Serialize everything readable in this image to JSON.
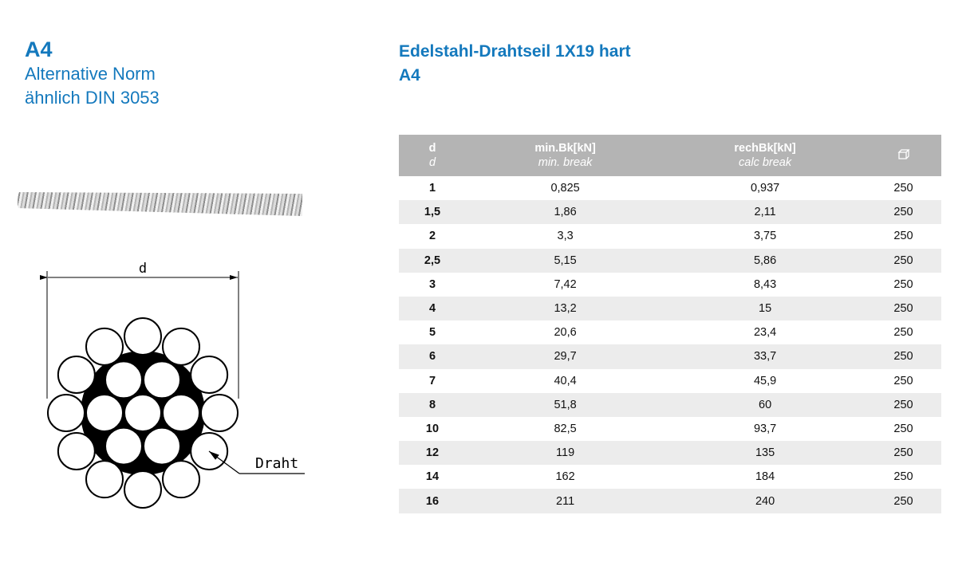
{
  "left_title": {
    "code": "A4",
    "line1": "Alternative Norm",
    "line2": "ähnlich DIN 3053"
  },
  "right_title": {
    "title": "Edelstahl-Drahtseil 1X19 hart",
    "code": "A4"
  },
  "diagram": {
    "dimension_label": "d",
    "wire_label": "Draht"
  },
  "table": {
    "headers": [
      {
        "label": "d",
        "sub": "d"
      },
      {
        "label": "min.Bk[kN]",
        "sub": "min. break"
      },
      {
        "label": "rechBk[kN]",
        "sub": "calc break"
      },
      {
        "icon": "package-icon"
      }
    ],
    "rows": [
      [
        "1",
        "0,825",
        "0,937",
        "250"
      ],
      [
        "1,5",
        "1,86",
        "2,11",
        "250"
      ],
      [
        "2",
        "3,3",
        "3,75",
        "250"
      ],
      [
        "2,5",
        "5,15",
        "5,86",
        "250"
      ],
      [
        "3",
        "7,42",
        "8,43",
        "250"
      ],
      [
        "4",
        "13,2",
        "15",
        "250"
      ],
      [
        "5",
        "20,6",
        "23,4",
        "250"
      ],
      [
        "6",
        "29,7",
        "33,7",
        "250"
      ],
      [
        "7",
        "40,4",
        "45,9",
        "250"
      ],
      [
        "8",
        "51,8",
        "60",
        "250"
      ],
      [
        "10",
        "82,5",
        "93,7",
        "250"
      ],
      [
        "12",
        "119",
        "135",
        "250"
      ],
      [
        "14",
        "162",
        "184",
        "250"
      ],
      [
        "16",
        "211",
        "240",
        "250"
      ]
    ]
  },
  "colors": {
    "accent": "#1479bd",
    "header_bg": "#b4b4b4",
    "stripe": "#ececec"
  }
}
